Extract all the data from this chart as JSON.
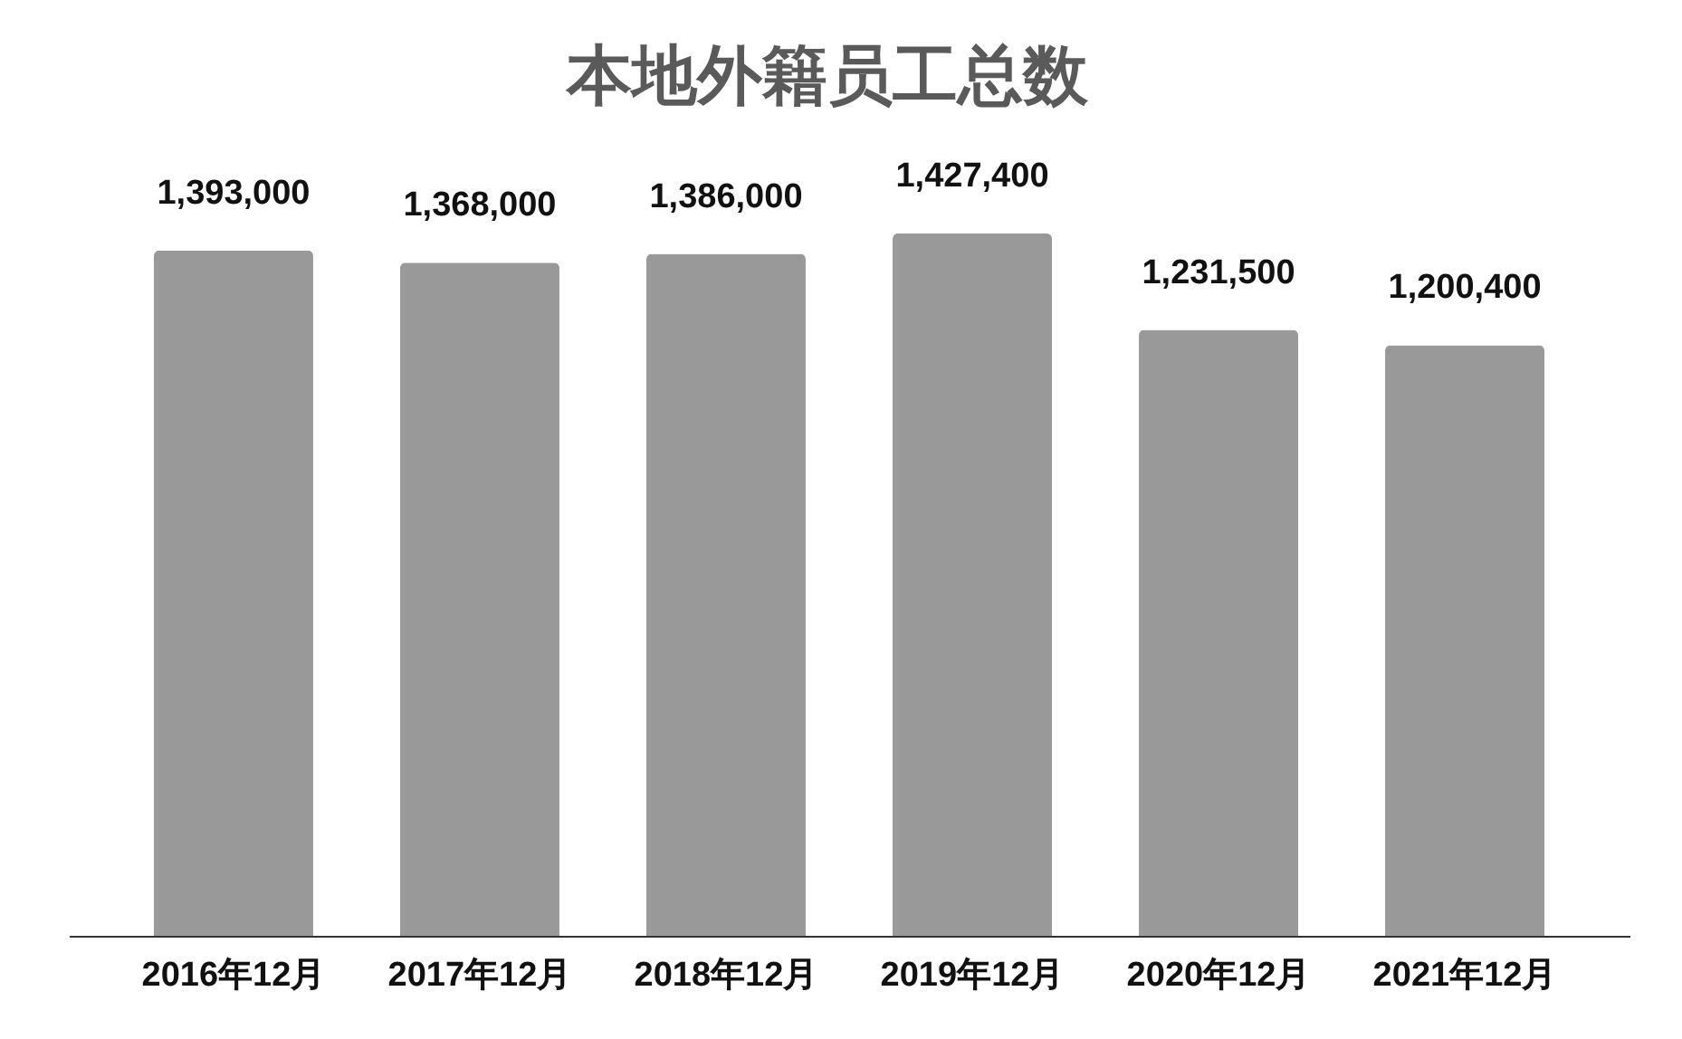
{
  "chart_data": {
    "type": "bar",
    "title": "本地外籍员工总数",
    "categories": [
      "2016年12月",
      "2017年12月",
      "2018年12月",
      "2019年12月",
      "2020年12月",
      "2021年12月"
    ],
    "values": [
      1393000,
      1368000,
      1386000,
      1427400,
      1231500,
      1200400
    ],
    "value_labels": [
      "1,393,000",
      "1,368,000",
      "1,386,000",
      "1,427,400",
      "1,231,500",
      "1,200,400"
    ],
    "color": "#999999"
  }
}
